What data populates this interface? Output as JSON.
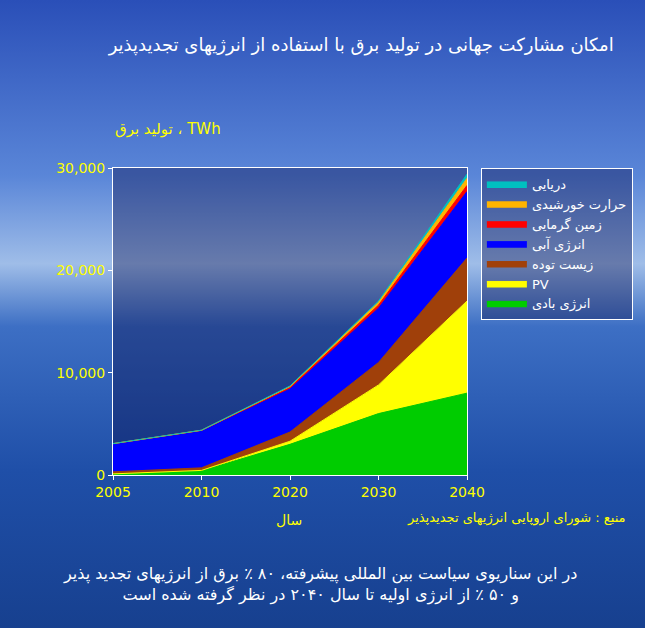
{
  "chart_data": {
    "type": "area",
    "stacked": true,
    "title": "امکان مشارکت جهانی در تولید برق با استفاده از انرژیهای تجدیدپذیر",
    "ylabel": "تولید برق ، TWh",
    "xlabel": "سال",
    "source": "منبع : شورای اروپایی انرژیهای تجدیدپذیر",
    "caption": [
      "در این سناریوی سیاست بین المللی پیشرفته، ۸۰ ٪ برق از انرژیهای تجدید پذیر",
      "و ۵۰ ٪ از انرژی اولیه تا سال ۲۰۴۰ در نظر گرفته شده است"
    ],
    "categories": [
      "2005",
      "2010",
      "2020",
      "2030",
      "2040"
    ],
    "ylim": [
      0,
      30000
    ],
    "yticks": [
      0,
      {
        "value": 10000,
        "label": "10,000"
      },
      {
        "value": 20000,
        "label": "20,000"
      },
      {
        "value": 30000,
        "label": "30,000"
      }
    ],
    "grid": false,
    "legend": "right",
    "series": [
      {
        "name": "انرژی بادی",
        "color": "#00cc00",
        "values": [
          100,
          400,
          3000,
          6000,
          8000
        ]
      },
      {
        "name": "PV",
        "color": "#ffff00",
        "values": [
          10,
          50,
          300,
          2800,
          9000
        ]
      },
      {
        "name": "زیست توده",
        "color": "#a0400a",
        "values": [
          200,
          250,
          900,
          2200,
          4200
        ]
      },
      {
        "name": "انرژی آبی",
        "color": "#0000ff",
        "values": [
          2700,
          3600,
          4200,
          5300,
          6500
        ]
      },
      {
        "name": "زمین گرمایی",
        "color": "#ff0000",
        "values": [
          50,
          60,
          150,
          300,
          600
        ]
      },
      {
        "name": "حرارت خورشیدی",
        "color": "#ffb400",
        "values": [
          5,
          10,
          100,
          300,
          700
        ]
      },
      {
        "name": "دریایی",
        "color": "#00c0c0",
        "values": [
          5,
          10,
          50,
          100,
          400
        ]
      }
    ]
  }
}
